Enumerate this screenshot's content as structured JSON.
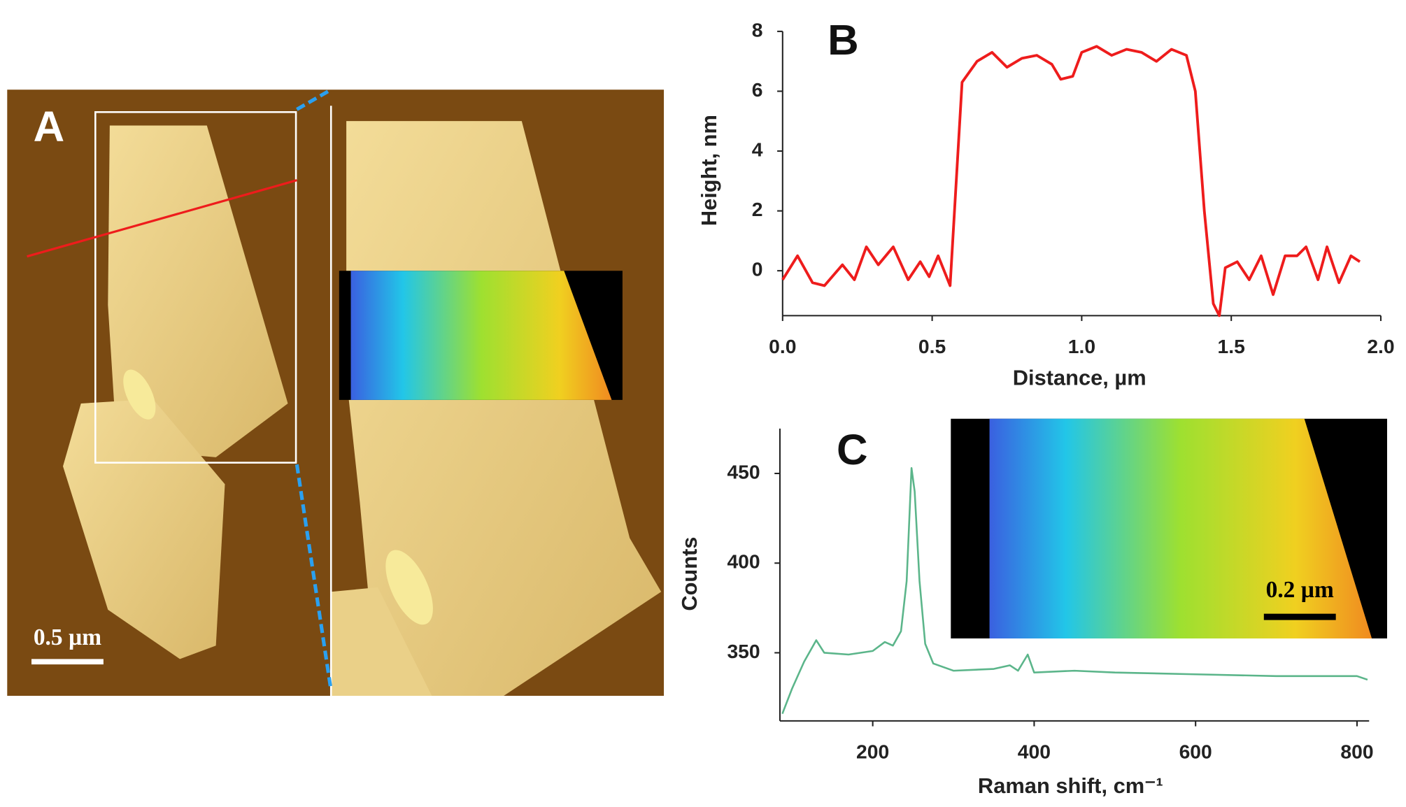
{
  "figure_a": {
    "label": "A",
    "scale_bar": "0.5 µm"
  },
  "chart_data": [
    {
      "type": "line",
      "title": "B",
      "x_label": "Distance, µm",
      "y_label": "Height, nm",
      "color": "#ee1c1c",
      "x": [
        0,
        0.05,
        0.1,
        0.14,
        0.2,
        0.24,
        0.28,
        0.32,
        0.37,
        0.42,
        0.46,
        0.49,
        0.52,
        0.56,
        0.6,
        0.65,
        0.7,
        0.75,
        0.8,
        0.85,
        0.9,
        0.93,
        0.97,
        1.0,
        1.05,
        1.1,
        1.15,
        1.2,
        1.25,
        1.3,
        1.35,
        1.38,
        1.41,
        1.44,
        1.46,
        1.48,
        1.52,
        1.56,
        1.6,
        1.64,
        1.68,
        1.72,
        1.75,
        1.79,
        1.82,
        1.86,
        1.9,
        1.93
      ],
      "values": [
        -0.3,
        0.5,
        -0.4,
        -0.5,
        0.2,
        -0.3,
        0.8,
        0.2,
        0.8,
        -0.3,
        0.3,
        -0.2,
        0.5,
        -0.5,
        6.3,
        7.0,
        7.3,
        6.8,
        7.1,
        7.2,
        6.9,
        6.4,
        6.5,
        7.3,
        7.5,
        7.2,
        7.4,
        7.3,
        7.0,
        7.4,
        7.2,
        6.0,
        2.0,
        -1.1,
        -1.5,
        0.1,
        0.3,
        -0.3,
        0.5,
        -0.8,
        0.5,
        0.5,
        0.8,
        -0.3,
        0.8,
        -0.4,
        0.5,
        0.3
      ],
      "xlim": [
        0,
        2
      ],
      "xticks": [
        {
          "value": 0,
          "label": "0.0"
        },
        0.5,
        {
          "value": 1,
          "label": "1.0"
        },
        1.5,
        {
          "value": 2,
          "label": "2.0"
        }
      ],
      "ylim": [
        -1.5,
        8
      ],
      "yticks": [
        0,
        2,
        4,
        6,
        8
      ]
    },
    {
      "type": "line",
      "title": "C",
      "x_label": "Raman shift, cm⁻¹",
      "y_label": "Counts",
      "color": "#5bb58a",
      "annotations": [
        "0.2 µm"
      ],
      "x": [
        88,
        100,
        115,
        130,
        140,
        170,
        200,
        215,
        225,
        235,
        242,
        248,
        252,
        258,
        265,
        275,
        300,
        350,
        370,
        380,
        392,
        400,
        450,
        500,
        600,
        700,
        800,
        813
      ],
      "values": [
        316,
        330,
        345,
        357,
        350,
        349,
        351,
        356,
        354,
        362,
        390,
        453,
        440,
        390,
        355,
        344,
        340,
        341,
        343,
        340,
        349,
        339,
        340,
        339,
        338,
        337,
        337,
        335
      ],
      "xlim": [
        85,
        815
      ],
      "xticks": [
        200,
        400,
        600,
        800
      ],
      "ylim": [
        312,
        475
      ],
      "yticks": [
        350,
        400,
        450
      ]
    }
  ]
}
